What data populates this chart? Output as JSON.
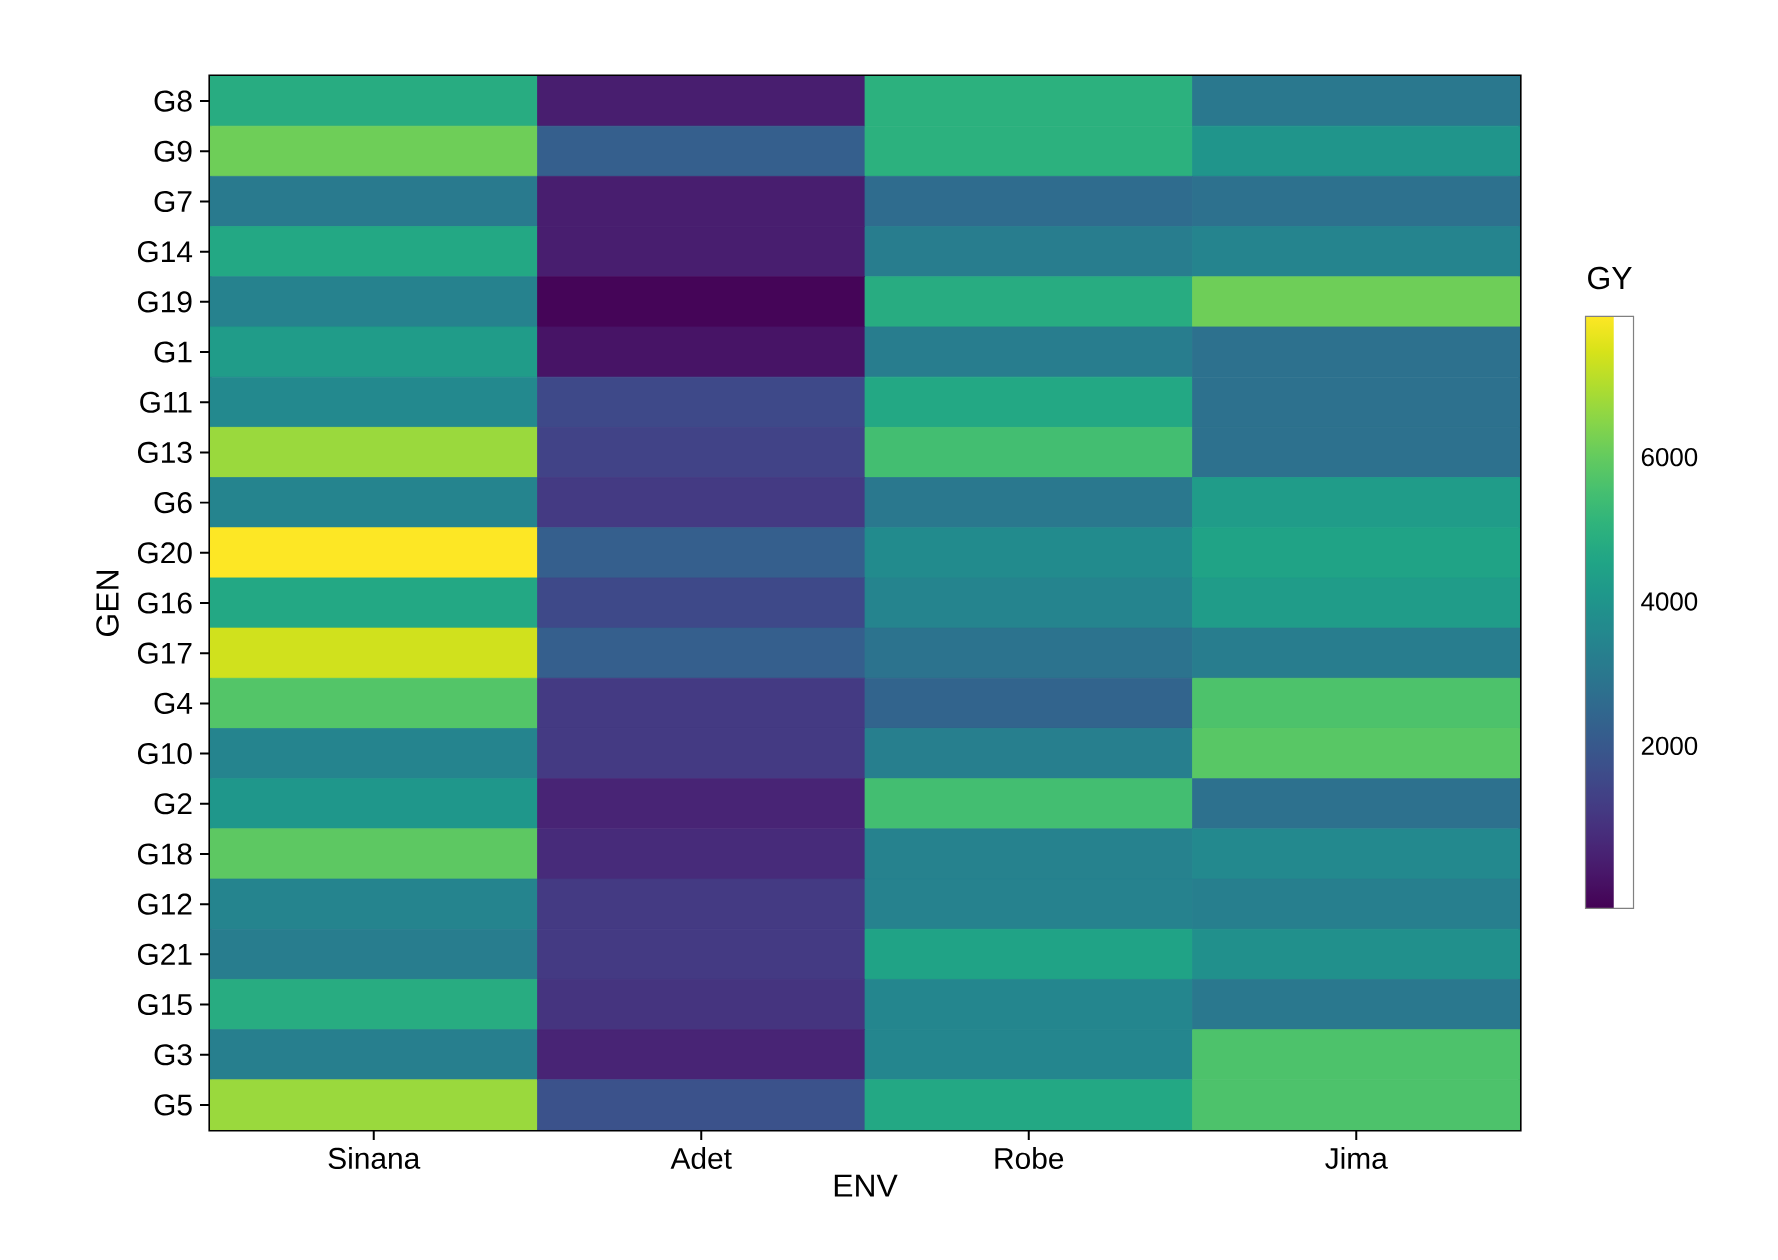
{
  "chart_data": {
    "type": "heatmap",
    "xlabel": "ENV",
    "ylabel": "GEN",
    "clabel": "GY",
    "categories": [
      "Sinana",
      "Adet",
      "Robe",
      "Jima"
    ],
    "y_categories": [
      "G8",
      "G9",
      "G7",
      "G14",
      "G19",
      "G1",
      "G11",
      "G13",
      "G6",
      "G20",
      "G16",
      "G17",
      "G4",
      "G10",
      "G2",
      "G18",
      "G12",
      "G21",
      "G15",
      "G3",
      "G5"
    ],
    "cells": [
      [
        4830,
        410,
        5000,
        3030
      ],
      [
        6150,
        2210,
        5000,
        4010
      ],
      [
        3110,
        410,
        2620,
        2780
      ],
      [
        4670,
        410,
        3190,
        3440
      ],
      [
        3360,
        -170,
        4830,
        6150
      ],
      [
        4260,
        160,
        3190,
        2780
      ],
      [
        3600,
        1550,
        4670,
        2780
      ],
      [
        6720,
        1390,
        5490,
        2780
      ],
      [
        3440,
        1140,
        3030,
        4260
      ],
      [
        7950,
        2210,
        3690,
        4510
      ],
      [
        4670,
        1550,
        3440,
        4260
      ],
      [
        7380,
        2210,
        2870,
        3190
      ],
      [
        5740,
        1140,
        2370,
        5650
      ],
      [
        3440,
        1140,
        3280,
        5820
      ],
      [
        4100,
        570,
        5490,
        2780
      ],
      [
        5900,
        730,
        3360,
        3600
      ],
      [
        3440,
        1140,
        3360,
        3280
      ],
      [
        3190,
        1140,
        4510,
        3850
      ],
      [
        4830,
        980,
        3520,
        3030
      ],
      [
        3280,
        570,
        3520,
        5650
      ],
      [
        6720,
        1800,
        4670,
        5650
      ]
    ],
    "clim": [
      -250,
      7950
    ],
    "cticks": [
      2000,
      4000,
      6000
    ]
  }
}
